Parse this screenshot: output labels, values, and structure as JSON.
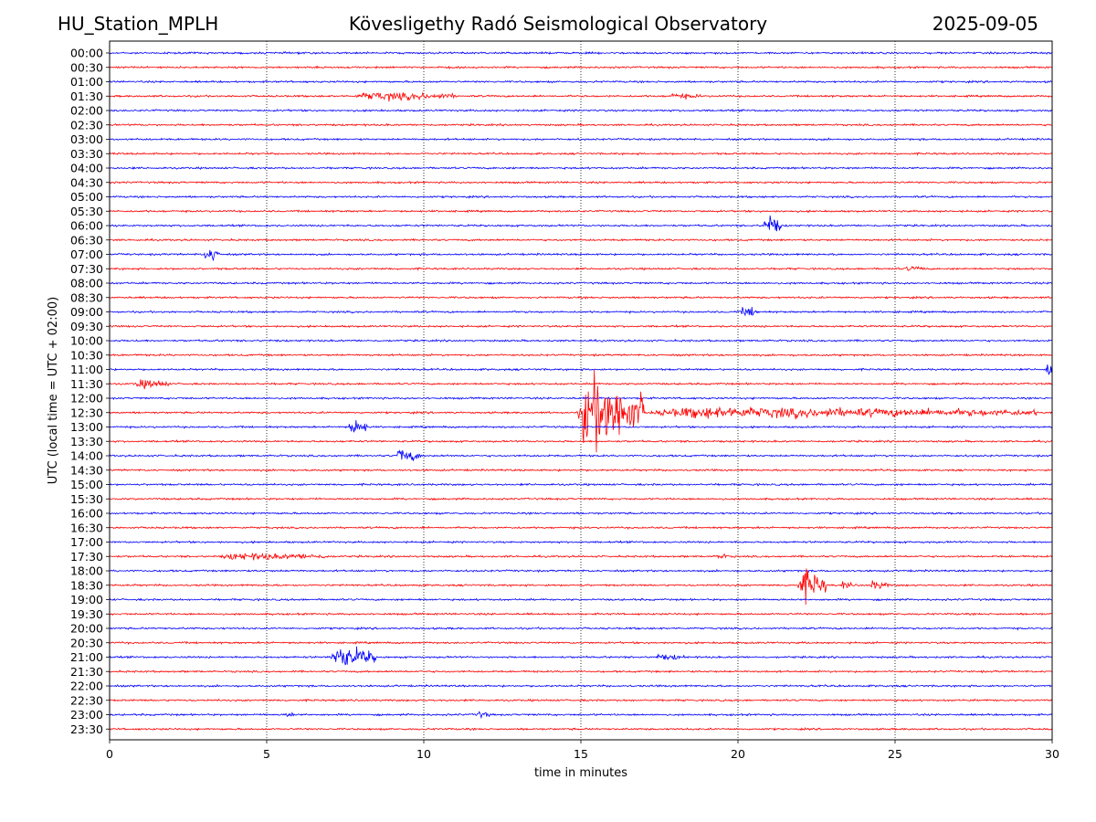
{
  "header": {
    "station": "HU_Station_MPLH",
    "title": "Kövesligethy Radó Seismological Observatory",
    "date": "2025-09-05"
  },
  "chart_data": {
    "type": "line",
    "subtype": "helicorder",
    "xlabel": "time in minutes",
    "ylabel": "UTC (local time = UTC + 02:00)",
    "xlim": [
      0,
      30
    ],
    "xticks": [
      0,
      5,
      10,
      15,
      20,
      25,
      30
    ],
    "grid": "vertical dotted lines at x-ticks",
    "colors": {
      "even_rows": "#0000ff",
      "odd_rows": "#ff0000"
    },
    "rows": [
      "00:00",
      "00:30",
      "01:00",
      "01:30",
      "02:00",
      "02:30",
      "03:00",
      "03:30",
      "04:00",
      "04:30",
      "05:00",
      "05:30",
      "06:00",
      "06:30",
      "07:00",
      "07:30",
      "08:00",
      "08:30",
      "09:00",
      "09:30",
      "10:00",
      "10:30",
      "11:00",
      "11:30",
      "12:00",
      "12:30",
      "13:00",
      "13:30",
      "14:00",
      "14:30",
      "15:00",
      "15:30",
      "16:00",
      "16:30",
      "17:00",
      "17:30",
      "18:00",
      "18:30",
      "19:00",
      "19:30",
      "20:00",
      "20:30",
      "21:00",
      "21:30",
      "22:00",
      "22:30",
      "23:00",
      "23:30"
    ],
    "events": [
      {
        "row": "01:30",
        "start": 7.8,
        "end": 11.0,
        "amp": 0.45
      },
      {
        "row": "01:30",
        "start": 17.8,
        "end": 18.8,
        "amp": 0.25
      },
      {
        "row": "06:00",
        "start": 20.8,
        "end": 21.4,
        "amp": 1.4
      },
      {
        "row": "07:00",
        "start": 3.0,
        "end": 3.5,
        "amp": 0.9
      },
      {
        "row": "07:30",
        "start": 25.3,
        "end": 26.0,
        "amp": 0.2
      },
      {
        "row": "09:00",
        "start": 20.1,
        "end": 20.7,
        "amp": 0.6
      },
      {
        "row": "11:00",
        "start": 29.8,
        "end": 30.0,
        "amp": 1.8
      },
      {
        "row": "11:30",
        "start": 0.8,
        "end": 1.9,
        "amp": 0.5
      },
      {
        "row": "12:30",
        "start": 14.9,
        "end": 17.0,
        "amp": 4.5
      },
      {
        "row": "12:30",
        "start": 17.0,
        "end": 29.5,
        "amp": 0.6
      },
      {
        "row": "13:00",
        "start": 7.6,
        "end": 8.2,
        "amp": 1.0
      },
      {
        "row": "14:00",
        "start": 9.1,
        "end": 9.9,
        "amp": 0.8
      },
      {
        "row": "17:30",
        "start": 3.5,
        "end": 7.0,
        "amp": 0.35
      },
      {
        "row": "17:30",
        "start": 19.3,
        "end": 19.7,
        "amp": 0.3
      },
      {
        "row": "18:30",
        "start": 21.9,
        "end": 22.8,
        "amp": 1.8
      },
      {
        "row": "18:30",
        "start": 23.3,
        "end": 23.6,
        "amp": 0.5
      },
      {
        "row": "18:30",
        "start": 24.2,
        "end": 24.8,
        "amp": 0.45
      },
      {
        "row": "21:00",
        "start": 7.0,
        "end": 8.5,
        "amp": 1.3
      },
      {
        "row": "21:00",
        "start": 17.3,
        "end": 18.3,
        "amp": 0.3
      },
      {
        "row": "23:00",
        "start": 5.6,
        "end": 5.9,
        "amp": 0.3
      },
      {
        "row": "23:00",
        "start": 11.6,
        "end": 12.1,
        "amp": 0.35
      }
    ]
  }
}
